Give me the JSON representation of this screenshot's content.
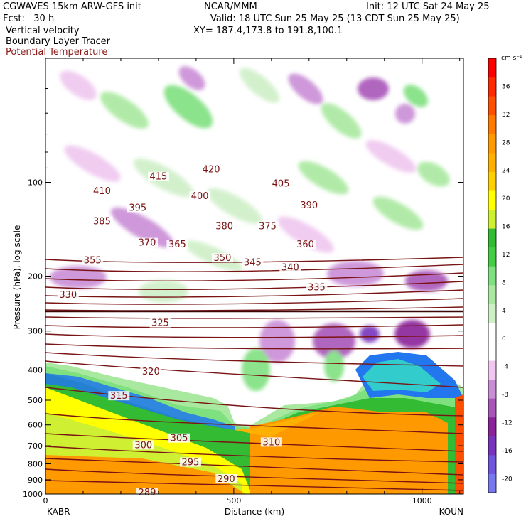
{
  "header": {
    "model": "CGWAVES 15km ARW-GFS init",
    "org": "NCAR/MMM",
    "init": "Init: 12 UTC Sat 24 May 25",
    "fcst": "Fcst:   30 h",
    "valid": "Valid: 18 UTC Sun 25 May 25 (13 CDT Sun 25 May 25)",
    "field1": "Vertical velocity",
    "field2": "Boundary Layer Tracer",
    "field3": "Potential Temperature",
    "xy": "XY= 187.4,173.8 to 191.8,100.1"
  },
  "colors": {
    "theta": "#7a1414",
    "field3_text": "#8b1a1a"
  },
  "chart_data": {
    "type": "heatmap",
    "xlabel": "Distance (km)",
    "ylabel": "Pressure (hPa), log scale",
    "xlim": [
      0,
      1110
    ],
    "ylim": [
      1000,
      40
    ],
    "y_scale": "log",
    "x_ticks": [
      0,
      500,
      1000
    ],
    "x_tick_labels": [
      "0",
      "500",
      "1000"
    ],
    "y_ticks": [
      100,
      200,
      300,
      400,
      500,
      600,
      700,
      800,
      900,
      1000
    ],
    "y_tick_labels": [
      "100",
      "200",
      "300",
      "400",
      "500",
      "600",
      "700",
      "800",
      "900",
      "1000"
    ],
    "left_station": "KABR",
    "right_station": "KOUN",
    "colorbar": {
      "unit": "cm s⁻¹",
      "levels": [
        -20,
        -16,
        -12,
        -8,
        -4,
        0,
        4,
        8,
        12,
        16,
        20,
        24,
        28,
        32,
        36
      ],
      "labels": [
        "-20",
        "-16",
        "-12",
        "-8",
        "-4",
        "0",
        "4",
        "8",
        "12",
        "16",
        "20",
        "24",
        "28",
        "32",
        "36"
      ],
      "colors": [
        "#7777ee",
        "#6f55dd",
        "#7733bb",
        "#8a2299",
        "#a855b8",
        "#c98dd6",
        "#efc7ef",
        "#ffffff",
        "#ffffff",
        "#cfefc7",
        "#a9e89f",
        "#7fe07f",
        "#44cc44",
        "#33bb33",
        "#cfef33",
        "#ffff00",
        "#ffd000",
        "#ffb000",
        "#ff9900",
        "#ff7a00",
        "#ff5000",
        "#ff2a00",
        "#ff0000"
      ]
    },
    "theta_labels": [
      {
        "text": "420",
        "x": 440,
        "p": 92
      },
      {
        "text": "415",
        "x": 300,
        "p": 97
      },
      {
        "text": "410",
        "x": 150,
        "p": 108
      },
      {
        "text": "405",
        "x": 625,
        "p": 102
      },
      {
        "text": "400",
        "x": 410,
        "p": 112
      },
      {
        "text": "395",
        "x": 245,
        "p": 122
      },
      {
        "text": "390",
        "x": 700,
        "p": 120
      },
      {
        "text": "385",
        "x": 150,
        "p": 135
      },
      {
        "text": "380",
        "x": 475,
        "p": 140
      },
      {
        "text": "375",
        "x": 590,
        "p": 140
      },
      {
        "text": "370",
        "x": 270,
        "p": 158
      },
      {
        "text": "365",
        "x": 350,
        "p": 160
      },
      {
        "text": "360",
        "x": 690,
        "p": 160
      },
      {
        "text": "355",
        "x": 125,
        "p": 180
      },
      {
        "text": "350",
        "x": 470,
        "p": 177
      },
      {
        "text": "345",
        "x": 550,
        "p": 183
      },
      {
        "text": "340",
        "x": 650,
        "p": 190
      },
      {
        "text": "335",
        "x": 720,
        "p": 220
      },
      {
        "text": "330",
        "x": 60,
        "p": 232
      },
      {
        "text": "325",
        "x": 305,
        "p": 286
      },
      {
        "text": "320",
        "x": 280,
        "p": 410
      },
      {
        "text": "315",
        "x": 195,
        "p": 490
      },
      {
        "text": "310",
        "x": 600,
        "p": 690
      },
      {
        "text": "305",
        "x": 355,
        "p": 670
      },
      {
        "text": "300",
        "x": 260,
        "p": 705
      },
      {
        "text": "295",
        "x": 385,
        "p": 800
      },
      {
        "text": "290",
        "x": 480,
        "p": 905
      },
      {
        "text": "289",
        "x": 270,
        "p": 1000
      }
    ]
  }
}
